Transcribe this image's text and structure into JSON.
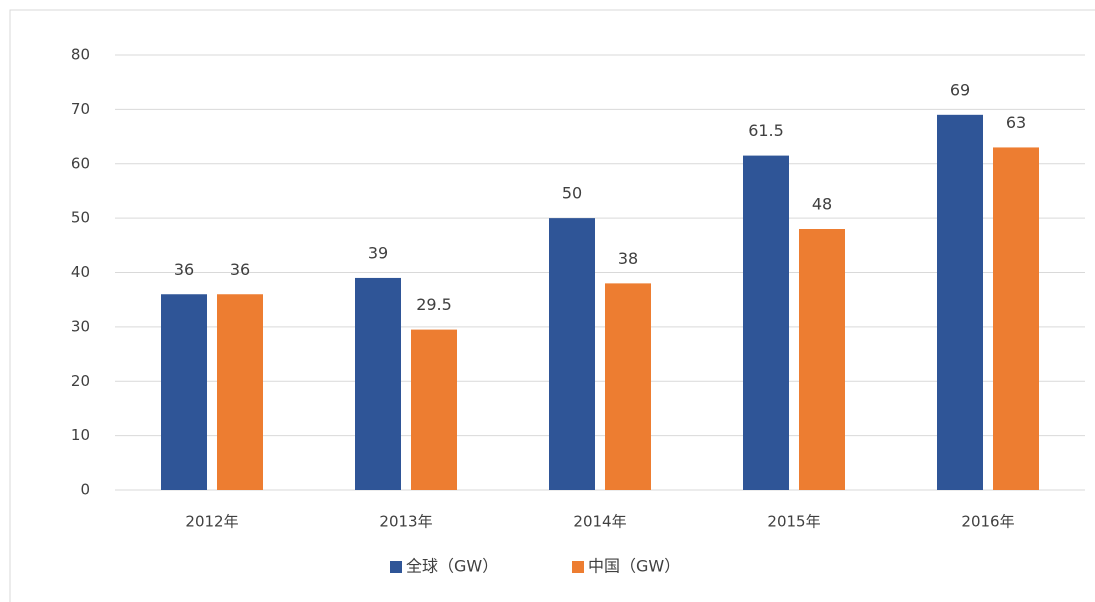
{
  "chart_data": {
    "type": "bar",
    "categories": [
      "2012年",
      "2013年",
      "2014年",
      "2015年",
      "2016年"
    ],
    "series": [
      {
        "name": "全球（GW）",
        "color": "#2f5597",
        "values": [
          36,
          39,
          50,
          61.5,
          69
        ]
      },
      {
        "name": "中国（GW）",
        "color": "#ed7d31",
        "values": [
          36,
          29.5,
          38,
          48,
          63
        ]
      }
    ],
    "ylim": [
      0,
      80
    ],
    "yticks": [
      0,
      10,
      20,
      30,
      40,
      50,
      60,
      70,
      80
    ],
    "grid": true,
    "legend": "bottom"
  }
}
